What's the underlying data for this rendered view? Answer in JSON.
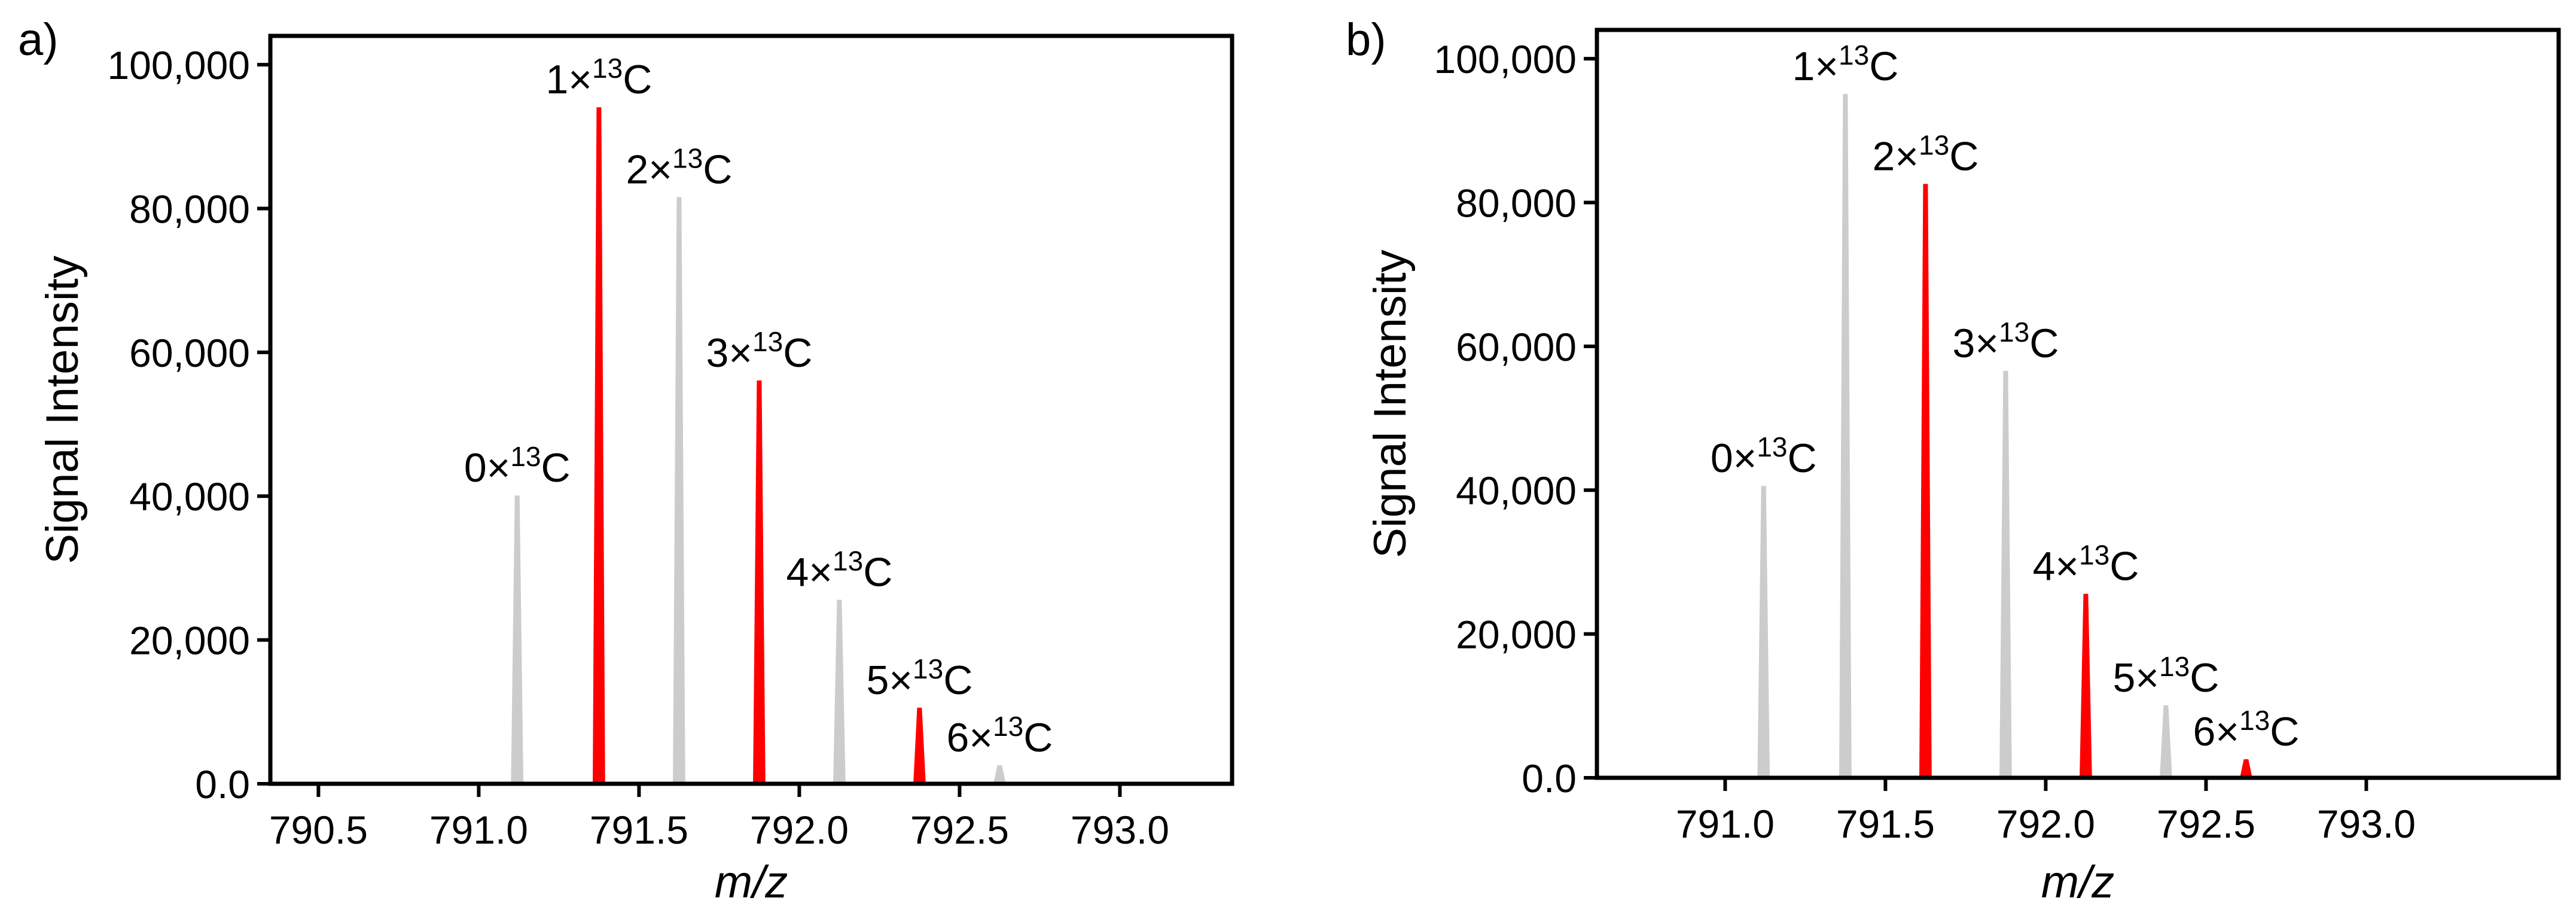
{
  "chart_data": [
    {
      "type": "line",
      "panel_label": "a)",
      "xlabel": "m/z",
      "ylabel": "Signal Intensity",
      "xlim": [
        790.35,
        793.35
      ],
      "ylim": [
        0,
        104000
      ],
      "x_ticks": [
        790.5,
        791.0,
        791.5,
        792.0,
        792.5,
        793.0
      ],
      "x_tick_labels": [
        "790.5",
        "791.0",
        "791.5",
        "792.0",
        "792.5",
        "793.0"
      ],
      "y_ticks": [
        0,
        20000,
        40000,
        60000,
        80000,
        100000
      ],
      "y_tick_labels": [
        "0.0",
        "20,000",
        "40,000",
        "60,000",
        "80,000",
        "100,000"
      ],
      "grid": false,
      "peak_width": 0.035,
      "peaks": [
        {
          "x": 791.12,
          "y": 40000,
          "label_main": "0×",
          "label_sup": "13",
          "label_tail": "C",
          "color": "#cccccc"
        },
        {
          "x": 791.375,
          "y": 94000,
          "label_main": "1×",
          "label_sup": "13",
          "label_tail": "C",
          "color": "#ff0000"
        },
        {
          "x": 791.625,
          "y": 81500,
          "label_main": "2×",
          "label_sup": "13",
          "label_tail": "C",
          "color": "#cccccc"
        },
        {
          "x": 791.875,
          "y": 56000,
          "label_main": "3×",
          "label_sup": "13",
          "label_tail": "C",
          "color": "#ff0000"
        },
        {
          "x": 792.125,
          "y": 25500,
          "label_main": "4×",
          "label_sup": "13",
          "label_tail": "C",
          "color": "#cccccc"
        },
        {
          "x": 792.375,
          "y": 10500,
          "label_main": "5×",
          "label_sup": "13",
          "label_tail": "C",
          "color": "#ff0000"
        },
        {
          "x": 792.625,
          "y": 2500,
          "label_main": "6×",
          "label_sup": "13",
          "label_tail": "C",
          "color": "#cccccc"
        }
      ]
    },
    {
      "type": "line",
      "panel_label": "b)",
      "xlabel": "m/z",
      "ylabel": "Signal Intensity",
      "xlim": [
        790.6,
        793.6
      ],
      "ylim": [
        0,
        104000
      ],
      "x_ticks": [
        791.0,
        791.5,
        792.0,
        792.5,
        793.0
      ],
      "x_tick_labels": [
        "791.0",
        "791.5",
        "792.0",
        "792.5",
        "793.0"
      ],
      "y_ticks": [
        0,
        20000,
        40000,
        60000,
        80000,
        100000
      ],
      "y_tick_labels": [
        "0.0",
        "20,000",
        "40,000",
        "60,000",
        "80,000",
        "100,000"
      ],
      "grid": false,
      "peak_width": 0.035,
      "peaks": [
        {
          "x": 791.12,
          "y": 40500,
          "label_main": "0×",
          "label_sup": "13",
          "label_tail": "C",
          "color": "#cccccc"
        },
        {
          "x": 791.375,
          "y": 95000,
          "label_main": "1×",
          "label_sup": "13",
          "label_tail": "C",
          "color": "#cccccc"
        },
        {
          "x": 791.625,
          "y": 82500,
          "label_main": "2×",
          "label_sup": "13",
          "label_tail": "C",
          "color": "#ff0000"
        },
        {
          "x": 791.875,
          "y": 56500,
          "label_main": "3×",
          "label_sup": "13",
          "label_tail": "C",
          "color": "#cccccc"
        },
        {
          "x": 792.125,
          "y": 25500,
          "label_main": "4×",
          "label_sup": "13",
          "label_tail": "C",
          "color": "#ff0000"
        },
        {
          "x": 792.375,
          "y": 10000,
          "label_main": "5×",
          "label_sup": "13",
          "label_tail": "C",
          "color": "#cccccc"
        },
        {
          "x": 792.625,
          "y": 2500,
          "label_main": "6×",
          "label_sup": "13",
          "label_tail": "C",
          "color": "#ff0000"
        }
      ]
    }
  ]
}
